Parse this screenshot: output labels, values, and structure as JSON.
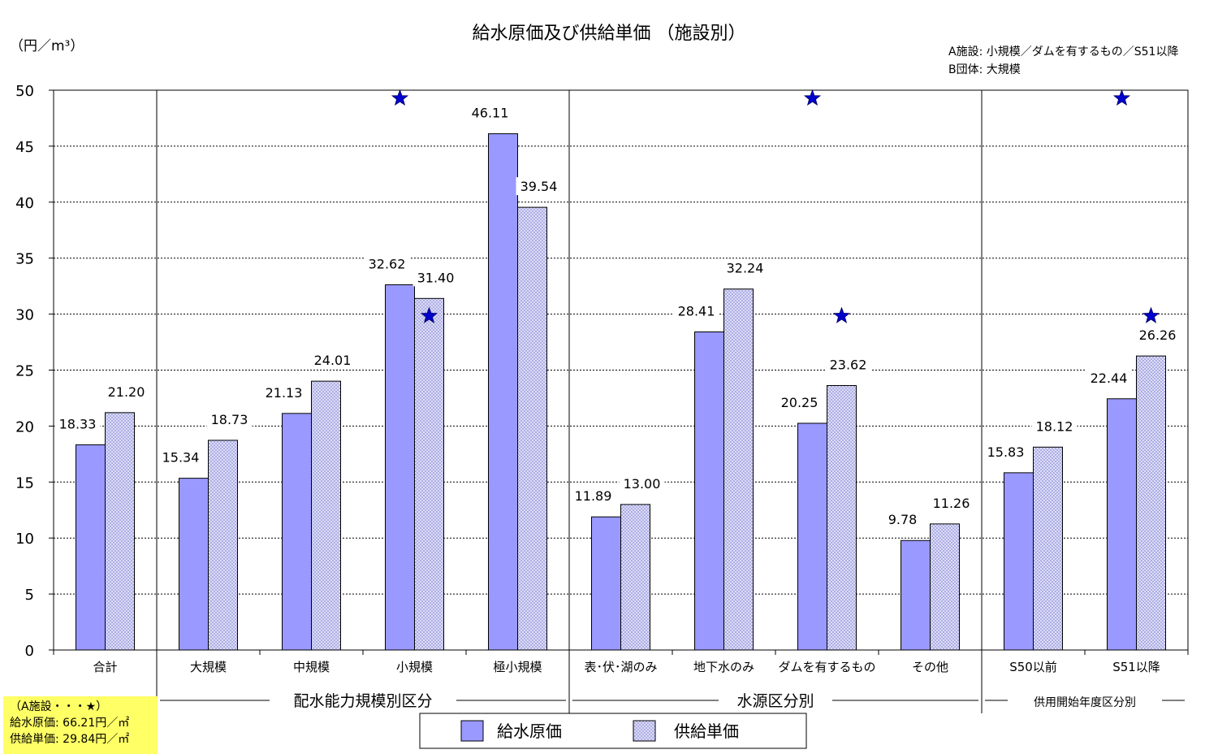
{
  "chart_data": {
    "type": "bar",
    "title": "給水原価及び供給単価 （施設別）",
    "unit_label": "（円／m³）",
    "ylim": [
      0,
      50
    ],
    "yticks": [
      0,
      5,
      10,
      15,
      20,
      25,
      30,
      35,
      40,
      45,
      50
    ],
    "grid": true,
    "legend_position": "bottom-center",
    "categories": [
      "合計",
      "大規模",
      "中規模",
      "小規模",
      "極小規模",
      "表･伏･湖のみ",
      "地下水のみ",
      "ダムを有するもの",
      "その他",
      "S50以前",
      "S51以降"
    ],
    "series": [
      {
        "name": "給水原価",
        "color": "#9999ff",
        "values": [
          18.33,
          15.34,
          21.13,
          32.62,
          46.11,
          11.89,
          28.41,
          20.25,
          9.78,
          15.83,
          22.44
        ]
      },
      {
        "name": "供給単価",
        "color": "#ccccff",
        "pattern": "crosshatch",
        "values": [
          21.2,
          18.73,
          24.01,
          31.4,
          39.54,
          13.0,
          32.24,
          23.62,
          11.26,
          18.12,
          26.26
        ]
      }
    ],
    "value_labels": [
      [
        "18.33",
        "15.34",
        "21.13",
        "32.62",
        "46.11",
        "11.89",
        "28.41",
        "20.25",
        "9.78",
        "15.83",
        "22.44"
      ],
      [
        "21.20",
        "18.73",
        "24.01",
        "31.40",
        "39.54",
        "13.00",
        "32.24",
        "23.62",
        "11.26",
        "18.12",
        "26.26"
      ]
    ],
    "groups": [
      {
        "label": "配水能力規模別区分",
        "categories": [
          1,
          2,
          3,
          4
        ]
      },
      {
        "label": "水源区分別",
        "categories": [
          5,
          6,
          7,
          8
        ]
      },
      {
        "label": "供用開始年度区分別",
        "categories": [
          9,
          10
        ]
      }
    ],
    "stars": [
      {
        "category": 3,
        "value": 66.21,
        "series": "給水原価",
        "off_scale": true
      },
      {
        "category": 3,
        "value": 29.84,
        "series": "供給単価"
      },
      {
        "category": 7,
        "value": 66.21,
        "series": "給水原価",
        "off_scale": true
      },
      {
        "category": 7,
        "value": 29.84,
        "series": "供給単価"
      },
      {
        "category": 10,
        "value": 66.21,
        "series": "給水原価",
        "off_scale": true
      },
      {
        "category": 10,
        "value": 29.84,
        "series": "供給単価"
      }
    ],
    "legend_note_lines": [
      "A施設: 小規模／ダムを有するもの／S51以降",
      "B団体: 大規模"
    ],
    "a_facility_box": {
      "heading": "（A施設・・・★）",
      "line1": "給水原価: 66.21円／㎡",
      "line2": "供給単価: 29.84円／㎡"
    }
  }
}
